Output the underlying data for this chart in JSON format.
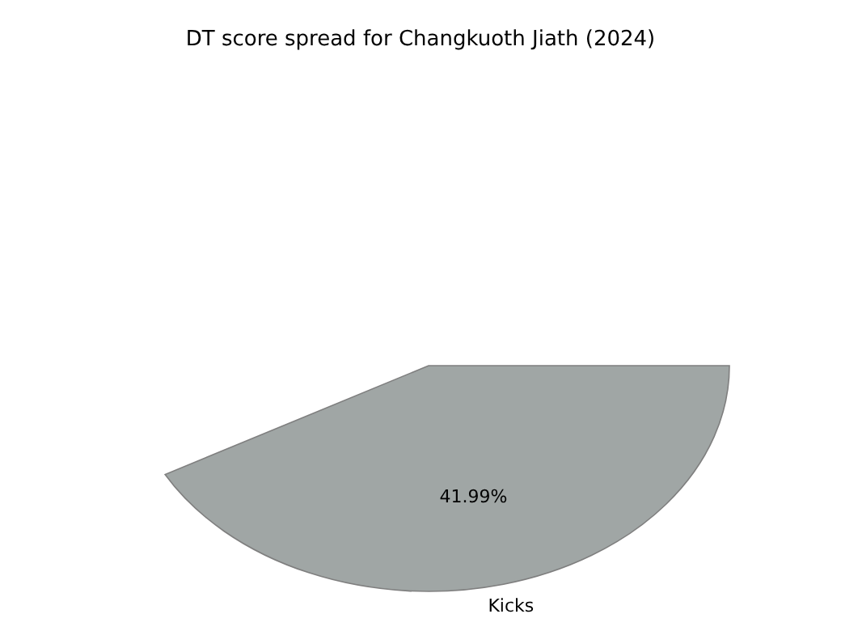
{
  "chart_data": {
    "type": "pie",
    "title": "DT score spread for Changkuoth Jiath (2024)",
    "categories": [
      "Kicks"
    ],
    "values": [
      41.99
    ],
    "colors": [
      "#a0a6a5"
    ],
    "value_labels": [
      "41.99%"
    ]
  }
}
